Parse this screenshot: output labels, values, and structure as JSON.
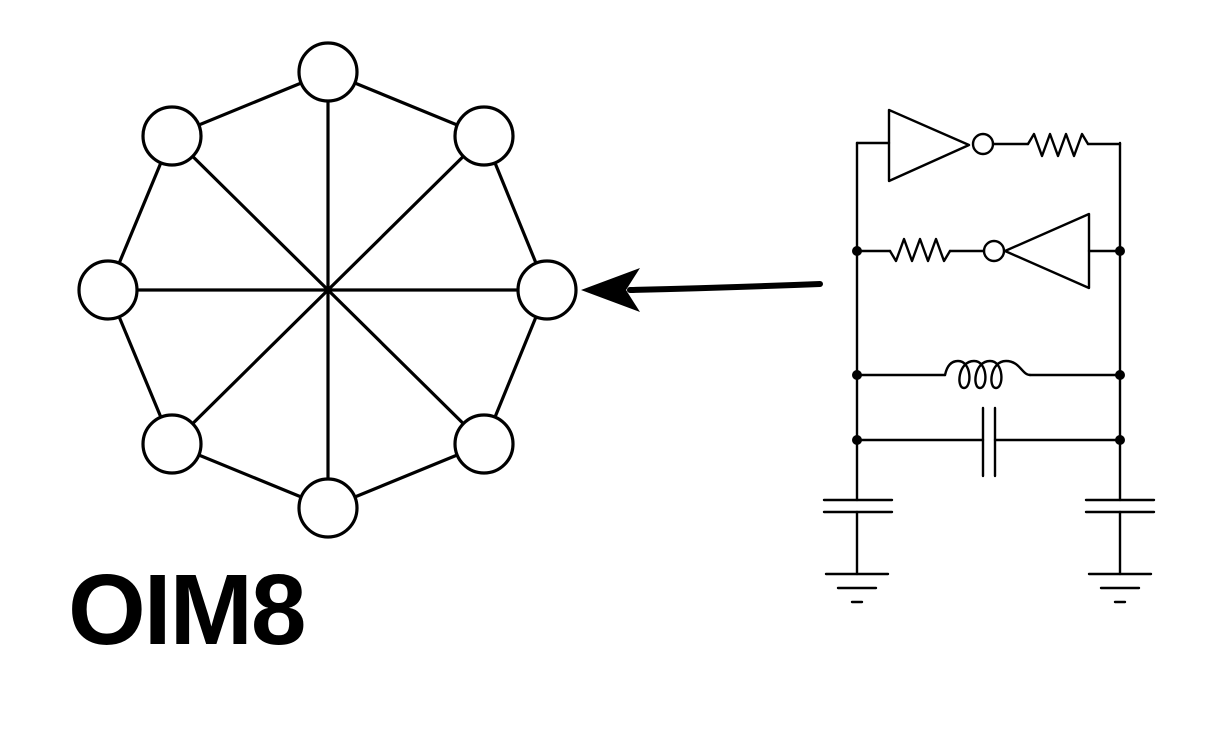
{
  "graph": {
    "label": "OIM8",
    "node_count": 8
  },
  "colors": {
    "stroke": "#000000",
    "background": "#ffffff"
  }
}
